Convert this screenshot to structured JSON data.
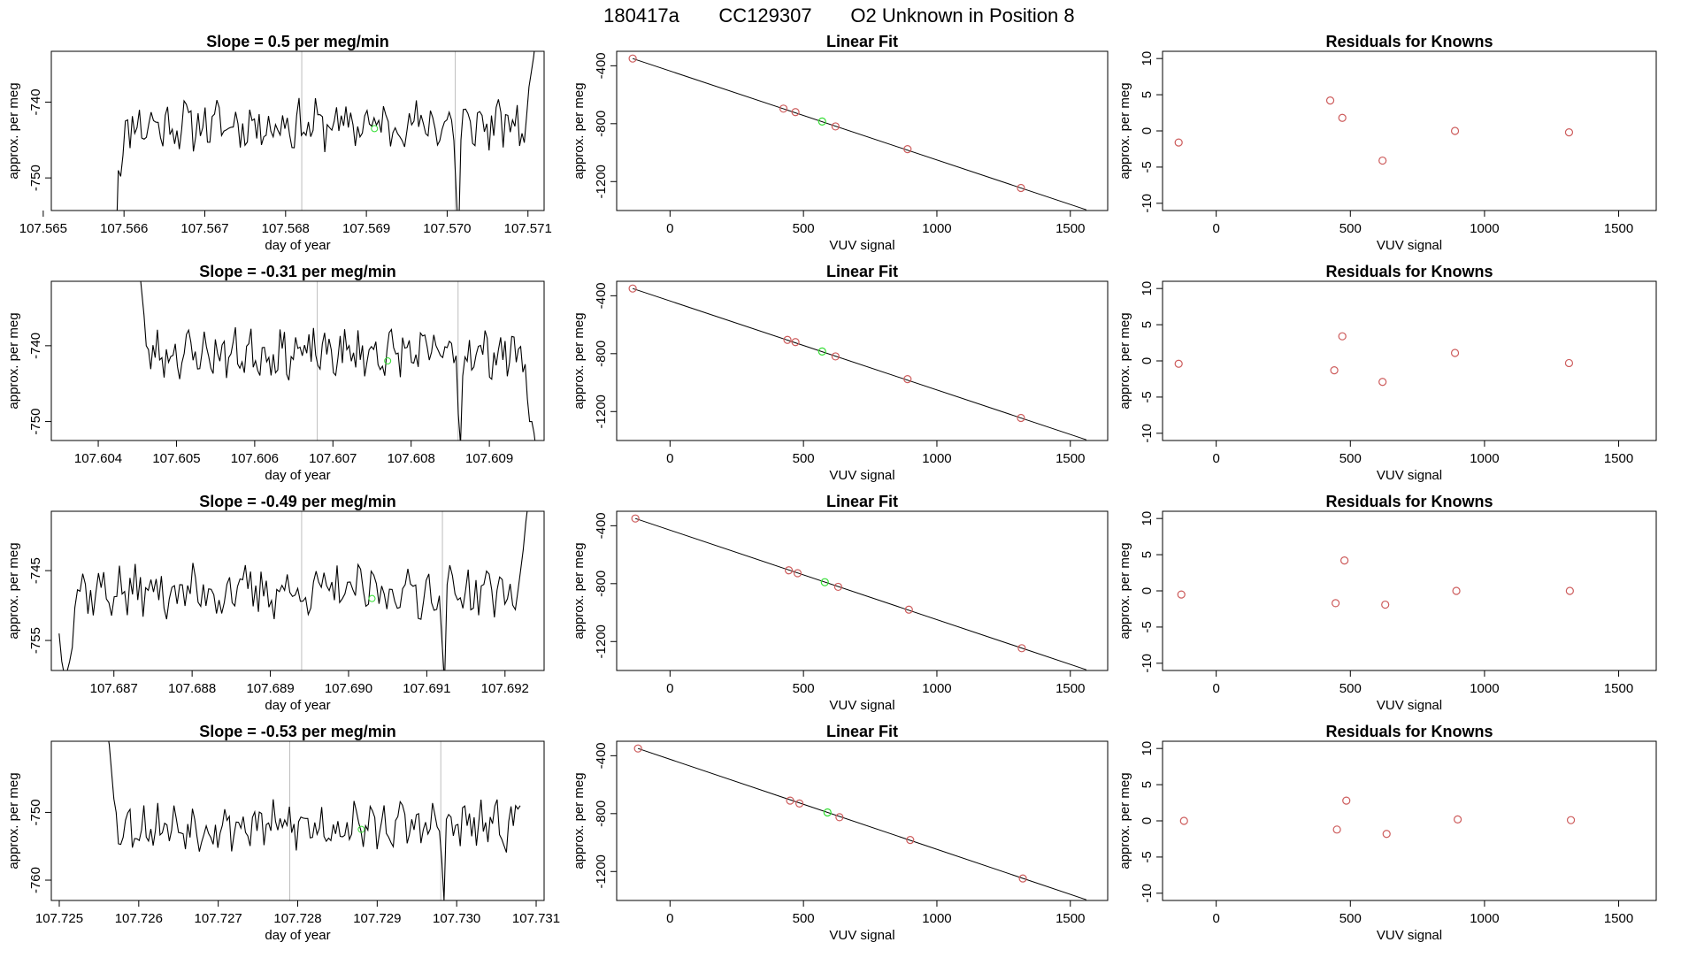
{
  "header": {
    "title_id": "180417a",
    "title_cylinder": "CC129307",
    "title_desc": "O2 Unknown in Position  8"
  },
  "colors": {
    "line": "#000000",
    "known_point": "#cd5c5c",
    "unknown_point": "#33dd33",
    "gridline": "#bebebe"
  },
  "chart_data": [
    {
      "type": "line",
      "name": "time-series",
      "title": "Slope =  0.5  per meg/min",
      "xlabel": "day of year",
      "ylabel": "approx. per meg",
      "xlim": [
        107.5651,
        107.5712
      ],
      "ylim": [
        -754.3,
        -733.3
      ],
      "xticks": [
        107.565,
        107.566,
        107.567,
        107.568,
        107.569,
        107.57,
        107.571
      ],
      "xtick_labels": [
        "107.565",
        "107.566",
        "107.567",
        "107.568",
        "107.569",
        "107.570",
        "107.571"
      ],
      "yticks": [
        -740,
        -750
      ],
      "ytick_labels": [
        "-740",
        "-750"
      ],
      "vlines": [
        107.5682,
        107.5701
      ],
      "series_start": 107.5659,
      "series_end": 107.5711,
      "series_mean": -743.0,
      "series_amp": 2.6,
      "series_seed": 11,
      "start_values": [
        -760,
        -749,
        -749.8,
        -747,
        -742.5
      ],
      "end_values": [
        -738,
        -736,
        -734,
        -731
      ],
      "dip": {
        "x": 107.5701,
        "values": [
          -752,
          -758,
          -745
        ]
      },
      "unknown_point": {
        "x": 107.5691,
        "y": -743.5
      }
    },
    {
      "type": "scatter",
      "name": "linear-fit",
      "title": "Linear Fit",
      "xlabel": "VUV signal",
      "ylabel": "approx. per meg",
      "xlim": [
        -200,
        1640
      ],
      "ylim": [
        -1400,
        -300
      ],
      "xticks": [
        0,
        500,
        1000,
        1500
      ],
      "xtick_labels": [
        "0",
        "500",
        "1000",
        "1500"
      ],
      "yticks": [
        -400,
        -800,
        -1200
      ],
      "ytick_labels": [
        "-400",
        "-800",
        "-1200"
      ],
      "fit_line": {
        "x": [
          -140,
          1560
        ],
        "y": [
          -350,
          -1395
        ]
      },
      "knowns": [
        {
          "x": -140,
          "y": -350
        },
        {
          "x": 425,
          "y": -696
        },
        {
          "x": 470,
          "y": -720
        },
        {
          "x": 620,
          "y": -819
        },
        {
          "x": 890,
          "y": -976
        },
        {
          "x": 1315,
          "y": -1244
        }
      ],
      "unknown": {
        "x": 570,
        "y": -785
      }
    },
    {
      "type": "scatter",
      "name": "residuals",
      "title": "Residuals for Knowns",
      "xlabel": "VUV signal",
      "ylabel": "approx. per meg",
      "xlim": [
        -200,
        1640
      ],
      "ylim": [
        -11,
        11
      ],
      "xticks": [
        0,
        500,
        1000,
        1500
      ],
      "xtick_labels": [
        "0",
        "500",
        "1000",
        "1500"
      ],
      "yticks": [
        10,
        5,
        0,
        -5,
        -10
      ],
      "ytick_labels": [
        "10",
        "5",
        "0",
        "-5",
        "-10"
      ],
      "points": [
        {
          "x": -140,
          "y": -1.6
        },
        {
          "x": 425,
          "y": 4.2
        },
        {
          "x": 470,
          "y": 1.8
        },
        {
          "x": 620,
          "y": -4.1
        },
        {
          "x": 890,
          "y": 0.0
        },
        {
          "x": 1315,
          "y": -0.2
        }
      ]
    },
    {
      "type": "line",
      "name": "time-series",
      "title": "Slope =  -0.31  per meg/min",
      "xlabel": "day of year",
      "ylabel": "approx. per meg",
      "xlim": [
        107.6034,
        107.6097
      ],
      "ylim": [
        -752.5,
        -731.5
      ],
      "xticks": [
        107.604,
        107.605,
        107.606,
        107.607,
        107.608,
        107.609
      ],
      "xtick_labels": [
        "107.604",
        "107.605",
        "107.606",
        "107.607",
        "107.608",
        "107.609"
      ],
      "yticks": [
        -740,
        -750
      ],
      "ytick_labels": [
        "-740",
        "-750"
      ],
      "vlines": [
        107.6068,
        107.6086
      ],
      "series_start": 107.6045,
      "series_end": 107.6096,
      "series_mean": -741.0,
      "series_amp": 2.5,
      "series_seed": 23,
      "start_values": [
        -728,
        -730,
        -733,
        -736,
        -740
      ],
      "end_values": [
        -747,
        -750,
        -750,
        -751.5,
        -754
      ],
      "dip": {
        "x": 107.6086,
        "values": [
          -749,
          -753,
          -744
        ]
      },
      "unknown_point": {
        "x": 107.6077,
        "y": -742
      }
    },
    {
      "type": "scatter",
      "name": "linear-fit",
      "title": "Linear Fit",
      "xlabel": "VUV signal",
      "ylabel": "approx. per meg",
      "xlim": [
        -200,
        1640
      ],
      "ylim": [
        -1400,
        -300
      ],
      "xticks": [
        0,
        500,
        1000,
        1500
      ],
      "xtick_labels": [
        "0",
        "500",
        "1000",
        "1500"
      ],
      "yticks": [
        -400,
        -800,
        -1200
      ],
      "ytick_labels": [
        "-400",
        "-800",
        "-1200"
      ],
      "fit_line": {
        "x": [
          -140,
          1560
        ],
        "y": [
          -350,
          -1395
        ]
      },
      "knowns": [
        {
          "x": -140,
          "y": -350
        },
        {
          "x": 440,
          "y": -705
        },
        {
          "x": 470,
          "y": -720
        },
        {
          "x": 620,
          "y": -819
        },
        {
          "x": 890,
          "y": -976
        },
        {
          "x": 1315,
          "y": -1244
        }
      ],
      "unknown": {
        "x": 570,
        "y": -785
      }
    },
    {
      "type": "scatter",
      "name": "residuals",
      "title": "Residuals for Knowns",
      "xlabel": "VUV signal",
      "ylabel": "approx. per meg",
      "xlim": [
        -200,
        1640
      ],
      "ylim": [
        -11,
        11
      ],
      "xticks": [
        0,
        500,
        1000,
        1500
      ],
      "xtick_labels": [
        "0",
        "500",
        "1000",
        "1500"
      ],
      "yticks": [
        10,
        5,
        0,
        -5,
        -10
      ],
      "ytick_labels": [
        "10",
        "5",
        "0",
        "-5",
        "-10"
      ],
      "points": [
        {
          "x": -140,
          "y": -0.4
        },
        {
          "x": 440,
          "y": -1.3
        },
        {
          "x": 470,
          "y": 3.4
        },
        {
          "x": 620,
          "y": -2.9
        },
        {
          "x": 890,
          "y": 1.1
        },
        {
          "x": 1315,
          "y": -0.3
        }
      ]
    },
    {
      "type": "line",
      "name": "time-series",
      "title": "Slope =  -0.49  per meg/min",
      "xlabel": "day of year",
      "ylabel": "approx. per meg",
      "xlim": [
        107.6862,
        107.6925
      ],
      "ylim": [
        -759.3,
        -736.5
      ],
      "xticks": [
        107.687,
        107.688,
        107.689,
        107.69,
        107.691,
        107.692
      ],
      "xtick_labels": [
        "107.687",
        "107.688",
        "107.689",
        "107.690",
        "107.691",
        "107.692"
      ],
      "yticks": [
        -745,
        -755
      ],
      "ytick_labels": [
        "-745",
        "-755"
      ],
      "vlines": [
        107.6894,
        107.6912
      ],
      "series_start": 107.6863,
      "series_end": 107.6923,
      "series_mean": -748.0,
      "series_amp": 3.0,
      "series_seed": 37,
      "start_values": [
        -754,
        -758,
        -760,
        -759.5,
        -758,
        -756
      ],
      "end_values": [
        -745,
        -742,
        -738,
        -735
      ],
      "dip": {
        "x": 107.6912,
        "values": [
          -755,
          -761,
          -747
        ]
      },
      "unknown_point": {
        "x": 107.6903,
        "y": -749
      }
    },
    {
      "type": "scatter",
      "name": "linear-fit",
      "title": "Linear Fit",
      "xlabel": "VUV signal",
      "ylabel": "approx. per meg",
      "xlim": [
        -200,
        1640
      ],
      "ylim": [
        -1400,
        -300
      ],
      "xticks": [
        0,
        500,
        1000,
        1500
      ],
      "xtick_labels": [
        "0",
        "500",
        "1000",
        "1500"
      ],
      "yticks": [
        -400,
        -800,
        -1200
      ],
      "ytick_labels": [
        "-400",
        "-800",
        "-1200"
      ],
      "fit_line": {
        "x": [
          -130,
          1560
        ],
        "y": [
          -350,
          -1395
        ]
      },
      "knowns": [
        {
          "x": -130,
          "y": -350
        },
        {
          "x": 445,
          "y": -708
        },
        {
          "x": 478,
          "y": -728
        },
        {
          "x": 630,
          "y": -822
        },
        {
          "x": 895,
          "y": -980
        },
        {
          "x": 1318,
          "y": -1246
        }
      ],
      "unknown": {
        "x": 580,
        "y": -790
      }
    },
    {
      "type": "scatter",
      "name": "residuals",
      "title": "Residuals for Knowns",
      "xlabel": "VUV signal",
      "ylabel": "approx. per meg",
      "xlim": [
        -200,
        1640
      ],
      "ylim": [
        -11,
        11
      ],
      "xticks": [
        0,
        500,
        1000,
        1500
      ],
      "xtick_labels": [
        "0",
        "500",
        "1000",
        "1500"
      ],
      "points": [
        {
          "x": -130,
          "y": -0.5
        },
        {
          "x": 445,
          "y": -1.7
        },
        {
          "x": 478,
          "y": 4.2
        },
        {
          "x": 630,
          "y": -1.9
        },
        {
          "x": 895,
          "y": 0.0
        },
        {
          "x": 1318,
          "y": 0.0
        }
      ],
      "yticks": [
        10,
        5,
        0,
        -5,
        -10
      ],
      "ytick_labels": [
        "10",
        "5",
        "0",
        "-5",
        "-10"
      ]
    },
    {
      "type": "line",
      "name": "time-series",
      "title": "Slope =  -0.53  per meg/min",
      "xlabel": "day of year",
      "ylabel": "approx. per meg",
      "xlim": [
        107.7249,
        107.7311
      ],
      "ylim": [
        -763,
        -739.5
      ],
      "xticks": [
        107.725,
        107.726,
        107.727,
        107.728,
        107.729,
        107.73,
        107.731
      ],
      "xtick_labels": [
        "107.725",
        "107.726",
        "107.727",
        "107.728",
        "107.729",
        "107.730",
        "107.731"
      ],
      "yticks": [
        -750,
        -760
      ],
      "ytick_labels": [
        "-750",
        "-760"
      ],
      "vlines": [
        107.7279,
        107.7298
      ],
      "series_start": 107.7256,
      "series_end": 107.7308,
      "series_mean": -752.0,
      "series_amp": 2.8,
      "series_seed": 53,
      "start_values": [
        -738,
        -740,
        -744,
        -748,
        -750
      ],
      "end_values": [
        -752,
        -749,
        -749.5,
        -749
      ],
      "dip": {
        "x": 107.7298,
        "values": [
          -757,
          -763,
          -751
        ]
      },
      "unknown_point": {
        "x": 107.7288,
        "y": -752.5
      }
    },
    {
      "type": "scatter",
      "name": "linear-fit",
      "title": "Linear Fit",
      "xlabel": "VUV signal",
      "ylabel": "approx. per meg",
      "xlim": [
        -200,
        1640
      ],
      "ylim": [
        -1400,
        -300
      ],
      "xticks": [
        0,
        500,
        1000,
        1500
      ],
      "xtick_labels": [
        "0",
        "500",
        "1000",
        "1500"
      ],
      "yticks": [
        -400,
        -800,
        -1200
      ],
      "ytick_labels": [
        "-400",
        "-800",
        "-1200"
      ],
      "fit_line": {
        "x": [
          -120,
          1560
        ],
        "y": [
          -350,
          -1395
        ]
      },
      "knowns": [
        {
          "x": -120,
          "y": -350
        },
        {
          "x": 450,
          "y": -710
        },
        {
          "x": 485,
          "y": -730
        },
        {
          "x": 635,
          "y": -825
        },
        {
          "x": 900,
          "y": -982
        },
        {
          "x": 1322,
          "y": -1248
        }
      ],
      "unknown": {
        "x": 590,
        "y": -792
      }
    },
    {
      "type": "scatter",
      "name": "residuals",
      "title": "Residuals for Knowns",
      "xlabel": "VUV signal",
      "ylabel": "approx. per meg",
      "xlim": [
        -200,
        1640
      ],
      "ylim": [
        -11,
        11
      ],
      "xticks": [
        0,
        500,
        1000,
        1500
      ],
      "xtick_labels": [
        "0",
        "500",
        "1000",
        "1500"
      ],
      "yticks": [
        10,
        5,
        0,
        -5,
        -10
      ],
      "ytick_labels": [
        "10",
        "5",
        "0",
        "-5",
        "-10"
      ],
      "points": [
        {
          "x": -120,
          "y": 0.0
        },
        {
          "x": 450,
          "y": -1.2
        },
        {
          "x": 485,
          "y": 2.8
        },
        {
          "x": 635,
          "y": -1.8
        },
        {
          "x": 900,
          "y": 0.2
        },
        {
          "x": 1322,
          "y": 0.1
        }
      ]
    }
  ]
}
